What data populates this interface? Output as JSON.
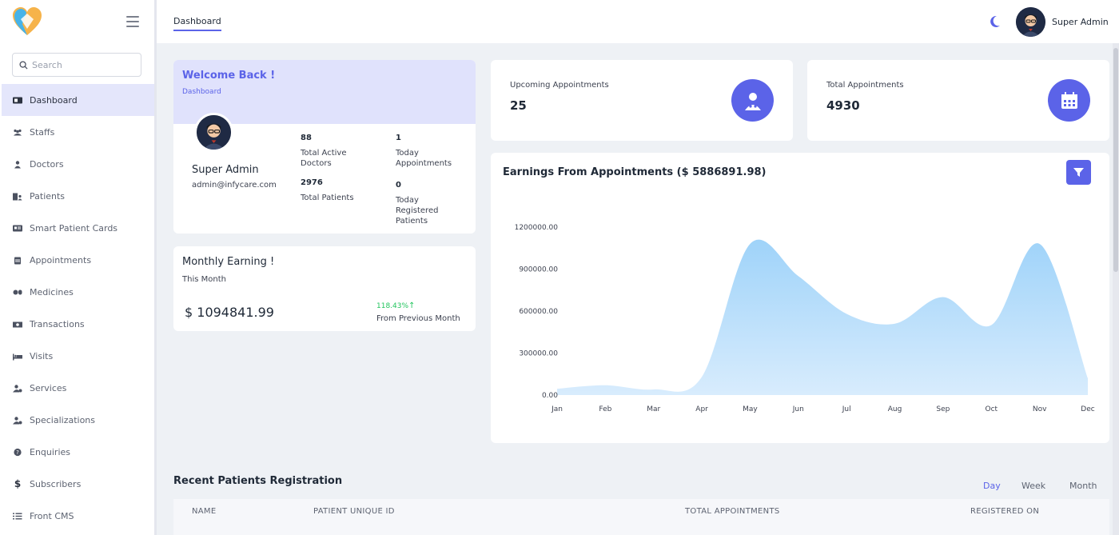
{
  "app": {
    "brand_colors": {
      "accent": "#5b63e8",
      "accent_light": "#e0e2fc"
    }
  },
  "sidebar": {
    "search_placeholder": "Search",
    "items": [
      {
        "label": "Dashboard",
        "icon": "dashboard-icon",
        "active": true
      },
      {
        "label": "Staffs",
        "icon": "users-icon"
      },
      {
        "label": "Doctors",
        "icon": "user-doctor-icon"
      },
      {
        "label": "Patients",
        "icon": "hospital-user-icon"
      },
      {
        "label": "Smart Patient Cards",
        "icon": "id-card-icon"
      },
      {
        "label": "Appointments",
        "icon": "calendar-icon"
      },
      {
        "label": "Medicines",
        "icon": "pills-icon"
      },
      {
        "label": "Transactions",
        "icon": "money-icon"
      },
      {
        "label": "Visits",
        "icon": "bed-icon"
      },
      {
        "label": "Services",
        "icon": "user-gear-icon"
      },
      {
        "label": "Specializations",
        "icon": "user-gear-icon"
      },
      {
        "label": "Enquiries",
        "icon": "question-icon"
      },
      {
        "label": "Subscribers",
        "icon": "dollar-icon"
      },
      {
        "label": "Front CMS",
        "icon": "list-icon"
      }
    ]
  },
  "header": {
    "breadcrumb": "Dashboard",
    "user_name": "Super Admin"
  },
  "welcome": {
    "title": "Welcome Back !",
    "subtitle": "Dashboard",
    "name": "Super Admin",
    "email": "admin@infycare.com",
    "stats": [
      {
        "value": "88",
        "label": "Total Active Doctors"
      },
      {
        "value": "1",
        "label": "Today Appointments"
      },
      {
        "value": "2976",
        "label": "Total Patients"
      },
      {
        "value": "0",
        "label": "Today Registered Patients"
      }
    ]
  },
  "monthly": {
    "title": "Monthly Earning !",
    "subtitle": "This Month",
    "amount": "$ 1094841.99",
    "change": "118.43%",
    "change_label": "From Previous Month"
  },
  "cards": {
    "upcoming": {
      "label": "Upcoming Appointments",
      "value": "25",
      "icon": "user-doctor-icon"
    },
    "total": {
      "label": "Total Appointments",
      "value": "4930",
      "icon": "calendar-icon"
    }
  },
  "chart": {
    "title": "Earnings From Appointments ($ 5886891.98)",
    "filter_icon": "filter-icon"
  },
  "chart_data": {
    "type": "area",
    "title": "Earnings From Appointments ($ 5886891.98)",
    "categories": [
      "Jan",
      "Feb",
      "Mar",
      "Apr",
      "May",
      "Jun",
      "Jul",
      "Aug",
      "Sep",
      "Oct",
      "Nov",
      "Dec"
    ],
    "series": [
      {
        "values": [
          45000,
          70000,
          40000,
          130000,
          1080000,
          850000,
          580000,
          510000,
          700000,
          500000,
          1080000,
          120000
        ]
      }
    ],
    "ylim": [
      0,
      1200000
    ],
    "yticks": [
      "0.00",
      "300000.00",
      "600000.00",
      "900000.00",
      "1200000.00"
    ],
    "color": "#9fd3f9",
    "grid": false
  },
  "recent": {
    "title": "Recent Patients Registration",
    "periods": [
      "Day",
      "Week",
      "Month"
    ],
    "columns": [
      "NAME",
      "PATIENT UNIQUE ID",
      "TOTAL APPOINTMENTS",
      "REGISTERED ON"
    ]
  }
}
